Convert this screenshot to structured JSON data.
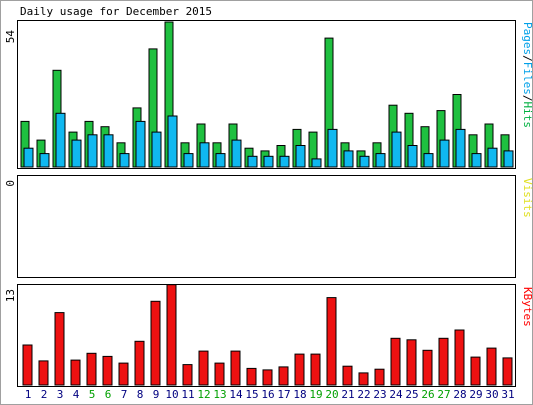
{
  "chart_data": {
    "type": "bar",
    "title": "Daily usage for December 2015",
    "categories": [
      "1",
      "2",
      "3",
      "4",
      "5",
      "6",
      "7",
      "8",
      "9",
      "10",
      "11",
      "12",
      "13",
      "14",
      "15",
      "16",
      "17",
      "18",
      "19",
      "20",
      "21",
      "22",
      "23",
      "24",
      "25",
      "26",
      "27",
      "28",
      "29",
      "30",
      "31"
    ],
    "weekend_days": [
      "5",
      "6",
      "12",
      "13",
      "19",
      "20",
      "26",
      "27"
    ],
    "panels": [
      {
        "id": "hits-pages",
        "scale_label": "54",
        "ylim": [
          0,
          54
        ],
        "legend": [
          {
            "text": "Pages",
            "color": "#00a0e8"
          },
          {
            "text": "/",
            "color": "#000000"
          },
          {
            "text": "Files",
            "color": "#00a0e8"
          },
          {
            "text": "/",
            "color": "#000000"
          },
          {
            "text": "Hits",
            "color": "#00b040"
          }
        ],
        "series": [
          {
            "name": "Hits",
            "color": "#1fc040",
            "values": [
              17,
              10,
              36,
              13,
              17,
              15,
              9,
              22,
              44,
              54,
              9,
              16,
              9,
              16,
              7,
              6,
              8,
              14,
              13,
              48,
              9,
              6,
              9,
              23,
              20,
              15,
              21,
              27,
              12,
              16,
              12
            ]
          },
          {
            "name": "Pages",
            "color": "#10b8f0",
            "values": [
              7,
              5,
              20,
              10,
              12,
              12,
              5,
              17,
              13,
              19,
              5,
              9,
              5,
              10,
              4,
              4,
              4,
              8,
              3,
              14,
              6,
              4,
              5,
              13,
              8,
              5,
              10,
              14,
              5,
              7,
              6
            ]
          }
        ]
      },
      {
        "id": "visits",
        "scale_label": "0",
        "ylim": [
          0,
          1
        ],
        "legend": [
          {
            "text": "Visits",
            "color": "#e0e020"
          }
        ],
        "series": []
      },
      {
        "id": "kbytes",
        "scale_label": "13",
        "ylim": [
          0,
          13
        ],
        "legend": [
          {
            "text": "KBytes",
            "color": "#ff0000"
          }
        ],
        "series": [
          {
            "name": "KBytes",
            "color": "#ee1111",
            "values": [
              5.3,
              3.2,
              9.6,
              3.3,
              4.2,
              3.8,
              2.9,
              5.8,
              11.1,
              13.3,
              2.7,
              4.5,
              2.9,
              4.5,
              2.2,
              2.0,
              2.4,
              4.1,
              4.1,
              11.6,
              2.5,
              1.6,
              2.1,
              6.2,
              6.0,
              4.6,
              6.2,
              7.3,
              3.7,
              4.9,
              3.6
            ]
          }
        ]
      }
    ],
    "colors": {
      "background": "#ffffff",
      "border": "#000000",
      "weekday_label": "#000080",
      "weekend_label": "#00a000"
    }
  }
}
